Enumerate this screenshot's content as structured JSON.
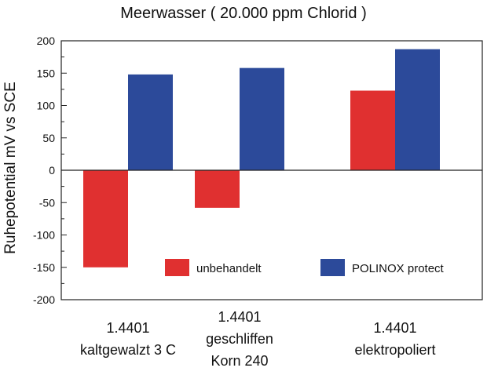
{
  "chart_data": {
    "type": "bar",
    "title": "Meerwasser ( 20.000 ppm Chlorid )",
    "xlabel": "",
    "ylabel": "Ruhepotential mV vs SCE",
    "ylim": [
      -200,
      200
    ],
    "yticks": [
      -200,
      -150,
      -100,
      -50,
      0,
      50,
      100,
      150,
      200
    ],
    "categories": [
      [
        "1.4401",
        "kaltgewalzt 3 C"
      ],
      [
        "1.4401",
        "geschliffen",
        "Korn 240"
      ],
      [
        "1.4401",
        "elektropoliert"
      ]
    ],
    "series": [
      {
        "name": "unbehandelt",
        "color": "#e03030",
        "values": [
          -150,
          -58,
          123
        ]
      },
      {
        "name": "POLINOX protect",
        "color": "#2c4a9a",
        "values": [
          148,
          158,
          187
        ]
      }
    ],
    "legend": "inside-bottom",
    "grid": false
  }
}
